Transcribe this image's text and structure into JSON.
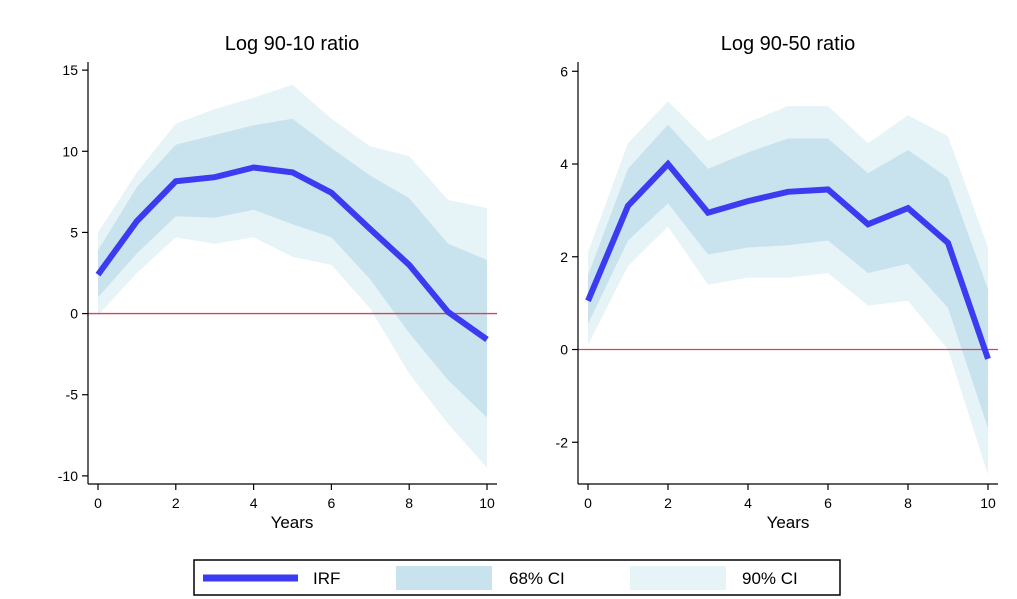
{
  "colors": {
    "irf": "#3b3bf2",
    "ci68": "#c9e3ee",
    "ci90": "#e6f3f7",
    "zero_line": "#d2455e",
    "axis": "#000000"
  },
  "legend": {
    "items": [
      {
        "label": "IRF",
        "color": "#3b3bf2",
        "kind": "line"
      },
      {
        "label": "68% CI",
        "color": "#c9e3ee",
        "kind": "area"
      },
      {
        "label": "90% CI",
        "color": "#e6f3f7",
        "kind": "area"
      }
    ]
  },
  "chart_data": [
    {
      "type": "line",
      "title": "Log 90-10 ratio",
      "xlabel": "Years",
      "ylabel": "",
      "x": [
        0,
        1,
        2,
        3,
        4,
        5,
        6,
        7,
        8,
        9,
        10
      ],
      "xlim": [
        0,
        10
      ],
      "ylim": [
        -10.5,
        15.5
      ],
      "xticks": [
        0,
        2,
        4,
        6,
        8,
        10
      ],
      "yticks": [
        -10,
        -5,
        0,
        5,
        10,
        15
      ],
      "zero_line": 0,
      "series": [
        {
          "name": "IRF",
          "values": [
            2.4,
            5.7,
            8.15,
            8.4,
            9.0,
            8.7,
            7.45,
            5.2,
            3.0,
            0.1,
            -1.6
          ]
        }
      ],
      "bands": [
        {
          "name": "90% CI",
          "lower": [
            -0.1,
            2.5,
            4.7,
            4.3,
            4.7,
            3.5,
            3.0,
            0.3,
            -3.7,
            -6.8,
            -9.5
          ],
          "upper": [
            5.0,
            8.7,
            11.7,
            12.6,
            13.3,
            14.1,
            12.0,
            10.3,
            9.7,
            7.0,
            6.5
          ]
        },
        {
          "name": "68% CI",
          "lower": [
            1.0,
            3.7,
            6.0,
            5.9,
            6.4,
            5.5,
            4.7,
            2.1,
            -1.2,
            -4.1,
            -6.4
          ],
          "upper": [
            3.9,
            7.8,
            10.4,
            11.0,
            11.6,
            12.0,
            10.2,
            8.5,
            7.1,
            4.3,
            3.3
          ]
        }
      ]
    },
    {
      "type": "line",
      "title": "Log 90-50 ratio",
      "xlabel": "Years",
      "ylabel": "",
      "x": [
        0,
        1,
        2,
        3,
        4,
        5,
        6,
        7,
        8,
        9,
        10
      ],
      "xlim": [
        0,
        10
      ],
      "ylim": [
        -2.9,
        6.2
      ],
      "xticks": [
        0,
        2,
        4,
        6,
        8,
        10
      ],
      "yticks": [
        -2,
        0,
        2,
        4,
        6
      ],
      "zero_line": 0,
      "series": [
        {
          "name": "IRF",
          "values": [
            1.05,
            3.1,
            4.0,
            2.95,
            3.2,
            3.4,
            3.45,
            2.7,
            3.05,
            2.3,
            -0.2
          ]
        }
      ],
      "bands": [
        {
          "name": "90% CI",
          "lower": [
            0.1,
            1.8,
            2.65,
            1.4,
            1.55,
            1.55,
            1.65,
            0.95,
            1.05,
            0.0,
            -2.7
          ],
          "upper": [
            2.1,
            4.45,
            5.35,
            4.5,
            4.9,
            5.25,
            5.25,
            4.45,
            5.05,
            4.6,
            2.2
          ]
        },
        {
          "name": "68% CI",
          "lower": [
            0.55,
            2.35,
            3.15,
            2.05,
            2.2,
            2.25,
            2.35,
            1.65,
            1.85,
            0.9,
            -1.7
          ],
          "upper": [
            1.6,
            3.9,
            4.85,
            3.9,
            4.25,
            4.55,
            4.55,
            3.8,
            4.3,
            3.7,
            1.3
          ]
        }
      ]
    }
  ]
}
